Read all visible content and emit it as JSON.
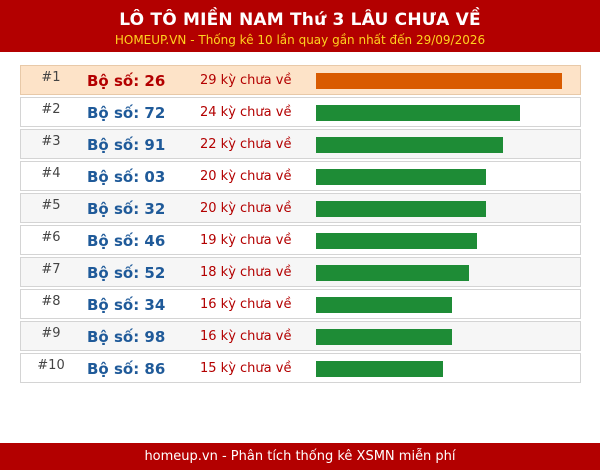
{
  "header": {
    "title": "LÔ TÔ MIỀN NAM Thứ 3 LÂU CHƯA VỀ",
    "subtitle": "HOMEUP.VN - Thống kê 10 lần quay gần nhất đến 29/09/2026"
  },
  "bar_max": 29,
  "rows": [
    {
      "rank": "#1",
      "label": "Bộ số: 26",
      "count_text": "29 kỳ chưa về",
      "value": 29
    },
    {
      "rank": "#2",
      "label": "Bộ số: 72",
      "count_text": "24 kỳ chưa về",
      "value": 24
    },
    {
      "rank": "#3",
      "label": "Bộ số: 91",
      "count_text": "22 kỳ chưa về",
      "value": 22
    },
    {
      "rank": "#4",
      "label": "Bộ số: 03",
      "count_text": "20 kỳ chưa về",
      "value": 20
    },
    {
      "rank": "#5",
      "label": "Bộ số: 32",
      "count_text": "20 kỳ chưa về",
      "value": 20
    },
    {
      "rank": "#6",
      "label": "Bộ số: 46",
      "count_text": "19 kỳ chưa về",
      "value": 19
    },
    {
      "rank": "#7",
      "label": "Bộ số: 52",
      "count_text": "18 kỳ chưa về",
      "value": 18
    },
    {
      "rank": "#8",
      "label": "Bộ số: 34",
      "count_text": "16 kỳ chưa về",
      "value": 16
    },
    {
      "rank": "#9",
      "label": "Bộ số: 98",
      "count_text": "16 kỳ chưa về",
      "value": 16
    },
    {
      "rank": "#10",
      "label": "Bộ số: 86",
      "count_text": "15 kỳ chưa về",
      "value": 15
    }
  ],
  "colors": {
    "header_bg": "#b30000",
    "subtitle": "#ffd21f",
    "top_bar": "#d95b00",
    "bar": "#1e8c36",
    "top_row_bg": "#fde3c8"
  },
  "footer": {
    "text": "homeup.vn - Phân tích thống kê XSMN miễn phí"
  }
}
